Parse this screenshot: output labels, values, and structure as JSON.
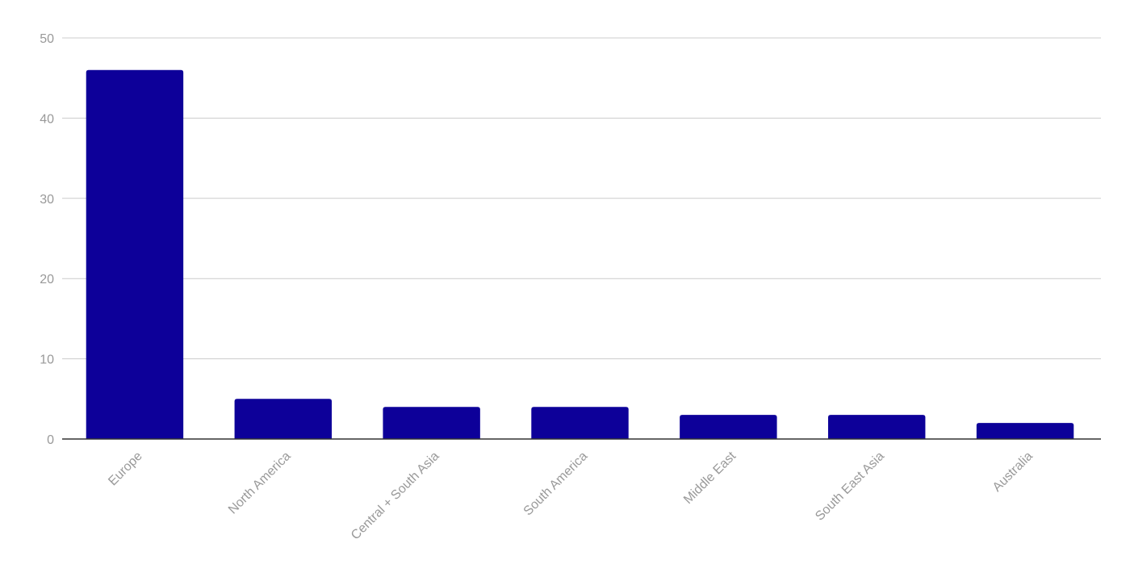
{
  "chart_data": {
    "type": "bar",
    "categories": [
      "Europe",
      "North America",
      "Central + South Asia",
      "South America",
      "Middle East",
      "South East Asia",
      "Australia"
    ],
    "values": [
      46,
      5,
      4,
      4,
      3,
      3,
      2
    ],
    "title": "",
    "xlabel": "",
    "ylabel": "",
    "ylim": [
      0,
      50
    ],
    "yticks": [
      "0",
      "10",
      "20",
      "30",
      "40",
      "50"
    ],
    "grid": true,
    "legend": "none",
    "bar_color": "#0d0099",
    "grid_color": "#cccccc",
    "tick_label_color": "#999999",
    "axis_color": "#333333"
  }
}
